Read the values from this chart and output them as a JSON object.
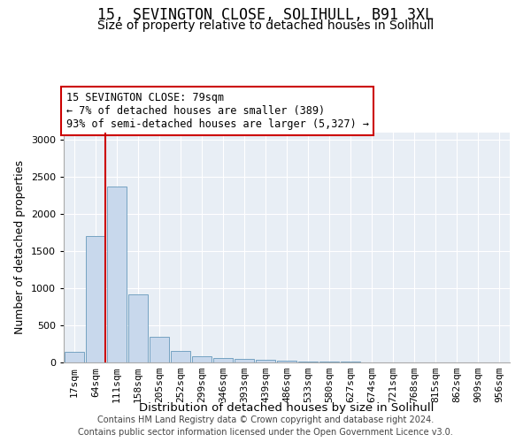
{
  "title": "15, SEVINGTON CLOSE, SOLIHULL, B91 3XL",
  "subtitle": "Size of property relative to detached houses in Solihull",
  "xlabel": "Distribution of detached houses by size in Solihull",
  "ylabel": "Number of detached properties",
  "footer_line1": "Contains HM Land Registry data © Crown copyright and database right 2024.",
  "footer_line2": "Contains public sector information licensed under the Open Government Licence v3.0.",
  "annotation_line1": "15 SEVINGTON CLOSE: 79sqm",
  "annotation_line2": "← 7% of detached houses are smaller (389)",
  "annotation_line3": "93% of semi-detached houses are larger (5,327) →",
  "bin_labels": [
    "17sqm",
    "64sqm",
    "111sqm",
    "158sqm",
    "205sqm",
    "252sqm",
    "299sqm",
    "346sqm",
    "393sqm",
    "439sqm",
    "486sqm",
    "533sqm",
    "580sqm",
    "627sqm",
    "674sqm",
    "721sqm",
    "768sqm",
    "815sqm",
    "862sqm",
    "909sqm",
    "956sqm"
  ],
  "bar_values": [
    140,
    1700,
    2370,
    920,
    340,
    160,
    85,
    65,
    45,
    30,
    20,
    15,
    10,
    8,
    5,
    4,
    3,
    2,
    2,
    1,
    1
  ],
  "bar_color": "#c8d8ec",
  "bar_edgecolor": "#6699bb",
  "red_line_bin": 1,
  "annotation_box_color": "#cc0000",
  "ylim": [
    0,
    3100
  ],
  "yticks": [
    0,
    500,
    1000,
    1500,
    2000,
    2500,
    3000
  ],
  "background_color": "#ffffff",
  "plot_background": "#e8eef5",
  "title_fontsize": 12,
  "subtitle_fontsize": 10,
  "axis_label_fontsize": 9,
  "tick_fontsize": 8,
  "footer_fontsize": 7
}
